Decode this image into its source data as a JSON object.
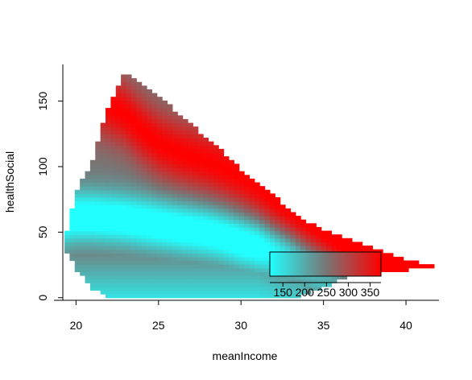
{
  "chart_data": {
    "type": "heatmap",
    "title": "",
    "xlabel": "meanIncome",
    "ylabel": "healthSocial",
    "xlim": [
      19.2,
      42.0
    ],
    "ylim": [
      -2,
      178
    ],
    "x_ticks": [
      20,
      25,
      30,
      35,
      40
    ],
    "x_tick_labels": [
      "20",
      "25",
      "30",
      "35",
      "40"
    ],
    "y_ticks": [
      0,
      50,
      100,
      150
    ],
    "y_tick_labels": [
      "0",
      "50",
      "100",
      "150"
    ],
    "grid": false,
    "colors": {
      "low": "#22ffff",
      "mid": "#777777",
      "high": "#ff0000"
    },
    "region": {
      "x": [
        19.3,
        20.0,
        21.0,
        22.0,
        23.0,
        24.0,
        25.0,
        26.0,
        27.0,
        28.0,
        29.0,
        30.0,
        31.0,
        32.0,
        33.0,
        34.0,
        35.0,
        36.0,
        37.0,
        38.0,
        39.0,
        40.0,
        41.0,
        41.7
      ],
      "y_min": [
        38,
        22,
        6,
        1,
        0,
        0,
        0,
        0,
        0,
        0,
        0,
        0,
        0,
        0,
        0,
        2,
        8,
        14,
        17,
        19,
        20,
        21,
        22,
        22
      ],
      "y_max": [
        42,
        80,
        105,
        148,
        172,
        164,
        153,
        143,
        132,
        121,
        110,
        98,
        88,
        78,
        67,
        58,
        52,
        47,
        43,
        38,
        33,
        29,
        26,
        24
      ]
    },
    "color_ridges": {
      "high_center": [
        [
          21.5,
          150
        ],
        [
          23,
          140
        ],
        [
          24,
          128
        ],
        [
          25,
          118
        ],
        [
          26,
          112
        ],
        [
          27,
          108
        ],
        [
          28,
          104
        ],
        [
          29,
          99
        ],
        [
          30,
          93
        ],
        [
          31,
          85
        ],
        [
          32,
          75
        ],
        [
          33,
          66
        ],
        [
          34,
          57
        ],
        [
          35,
          50
        ],
        [
          36,
          44
        ],
        [
          37,
          38
        ],
        [
          38,
          33
        ],
        [
          39,
          30
        ],
        [
          40,
          27
        ],
        [
          41,
          24
        ],
        [
          42,
          23
        ]
      ],
      "low_center": [
        [
          19.2,
          60
        ],
        [
          20,
          62
        ],
        [
          21,
          62
        ],
        [
          22,
          61
        ],
        [
          23,
          60
        ],
        [
          24,
          58
        ],
        [
          25,
          56
        ],
        [
          26,
          54
        ],
        [
          27,
          52
        ],
        [
          28,
          50
        ],
        [
          29,
          47
        ],
        [
          30,
          43
        ],
        [
          31,
          40
        ],
        [
          32,
          36
        ],
        [
          33,
          32
        ],
        [
          34,
          26
        ],
        [
          35,
          20
        ],
        [
          36,
          12
        ],
        [
          37,
          6
        ]
      ]
    },
    "legend": {
      "placement": "bottom-right",
      "labels": [
        "150",
        "200",
        "250",
        "300",
        "350"
      ],
      "range": [
        120,
        375
      ]
    }
  }
}
